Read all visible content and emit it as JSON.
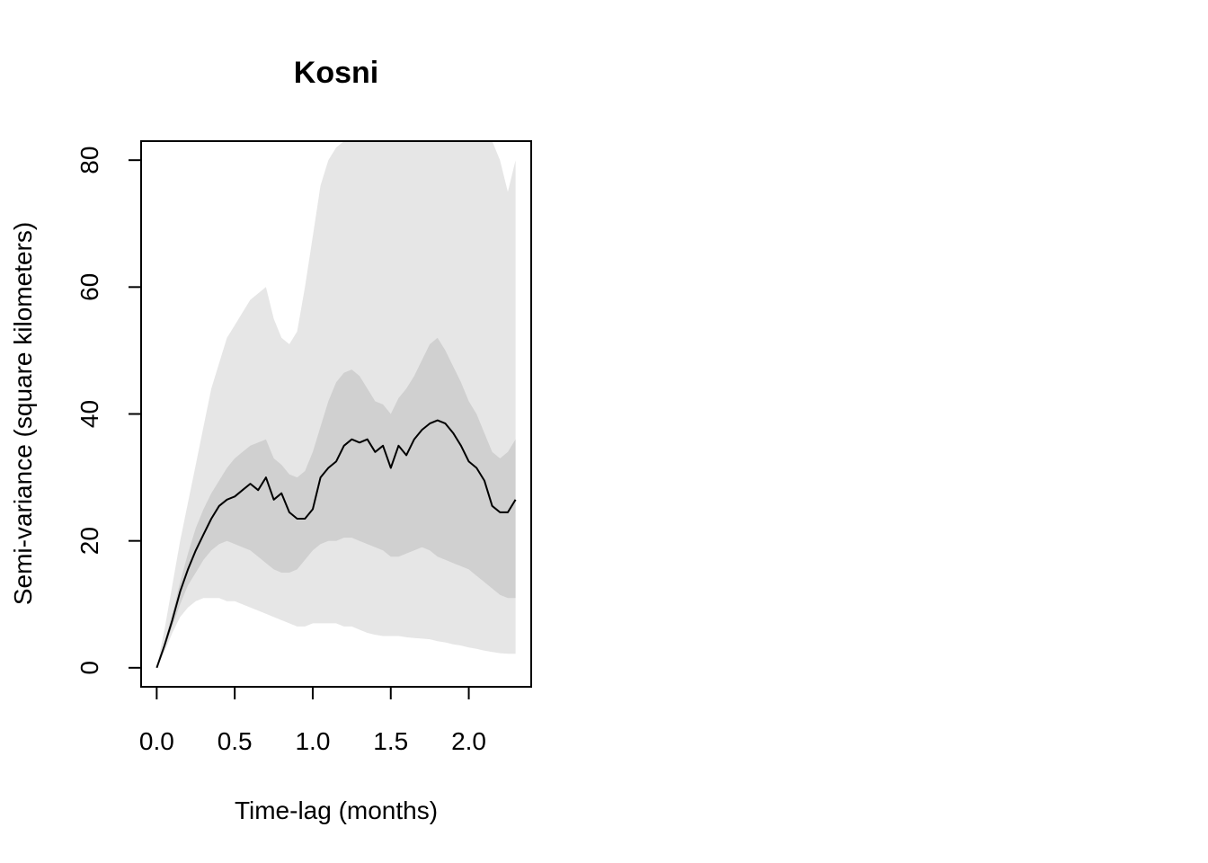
{
  "chart_data": {
    "type": "line",
    "title": "Kosni",
    "xlabel": "Time-lag (months)",
    "ylabel": "Semi-variance (square kilometers)",
    "xlim": [
      -0.1,
      2.4
    ],
    "ylim": [
      -3,
      83
    ],
    "xticks": [
      "0.0",
      "0.5",
      "1.0",
      "1.5",
      "2.0"
    ],
    "yticks": [
      "0",
      "20",
      "40",
      "60",
      "80"
    ],
    "grid": false,
    "colors": {
      "outer_band": "#e6e6e6",
      "inner_band": "#d0d0d0",
      "line": "#000000"
    },
    "x": [
      0.0,
      0.05,
      0.1,
      0.15,
      0.2,
      0.25,
      0.3,
      0.35,
      0.4,
      0.45,
      0.5,
      0.55,
      0.6,
      0.65,
      0.7,
      0.75,
      0.8,
      0.85,
      0.9,
      0.95,
      1.0,
      1.05,
      1.1,
      1.15,
      1.2,
      1.25,
      1.3,
      1.35,
      1.4,
      1.45,
      1.5,
      1.55,
      1.6,
      1.65,
      1.7,
      1.75,
      1.8,
      1.85,
      1.9,
      1.95,
      2.0,
      2.05,
      2.1,
      2.15,
      2.2,
      2.25,
      2.3
    ],
    "series": [
      {
        "values": [
          0,
          3.5,
          7.5,
          12,
          15.5,
          18.5,
          21,
          23.5,
          25.5,
          26.5,
          27,
          28,
          29,
          28,
          30,
          26.5,
          27.5,
          24.5,
          23.5,
          23.5,
          25,
          30,
          31.5,
          32.5,
          35,
          36,
          35.5,
          36,
          34,
          35,
          31.5,
          35,
          33.5,
          36,
          37.5,
          38.5,
          39,
          38.5,
          37,
          35,
          32.5,
          31.5,
          29.5,
          25.5,
          24.5,
          24.5,
          26.5
        ]
      }
    ],
    "bands": {
      "outer_upper": [
        0,
        6,
        13,
        20,
        26,
        32,
        38,
        44,
        48,
        52,
        54,
        56,
        58,
        59,
        60,
        55,
        52,
        51,
        53,
        60,
        68,
        76,
        80,
        82,
        84,
        87,
        90,
        90,
        90,
        90,
        90,
        90,
        90,
        90,
        90,
        90,
        90,
        90,
        90,
        90,
        90,
        90,
        90,
        90,
        80,
        75,
        80
      ],
      "inner_upper": [
        0,
        4,
        8.5,
        13.5,
        18,
        22,
        25,
        27.5,
        29.5,
        31.5,
        33,
        34,
        35,
        35.5,
        36,
        33,
        32,
        30.5,
        30,
        31,
        34,
        38,
        42,
        45,
        46.5,
        47,
        46,
        44,
        42,
        41.5,
        40,
        42.5,
        44,
        46,
        48.5,
        51,
        52,
        50,
        47.5,
        45,
        42,
        40,
        37,
        34,
        33,
        34,
        36
      ],
      "inner_lower": [
        0,
        3,
        6.5,
        10,
        13,
        15,
        17,
        18.5,
        19.5,
        20,
        19.5,
        19,
        18.5,
        17.5,
        16.5,
        15.5,
        15,
        15,
        15.5,
        17,
        18.5,
        19.5,
        20,
        20,
        20.5,
        20.5,
        20,
        19.5,
        19,
        18.5,
        17.5,
        17.5,
        18,
        18.5,
        19,
        18.5,
        17.5,
        17,
        16.5,
        16,
        15.5,
        14.5,
        13.5,
        12.5,
        11.5,
        11,
        11
      ],
      "outer_lower": [
        0,
        2.5,
        5.5,
        8,
        9.5,
        10.5,
        11,
        11,
        11,
        10.5,
        10.5,
        10,
        9.5,
        9,
        8.5,
        8,
        7.5,
        7,
        6.5,
        6.5,
        7,
        7,
        7,
        7,
        6.5,
        6.5,
        6,
        5.5,
        5.2,
        5,
        5,
        5,
        4.8,
        4.7,
        4.6,
        4.5,
        4.2,
        4,
        3.7,
        3.5,
        3.2,
        3,
        2.7,
        2.5,
        2.3,
        2.2,
        2.2
      ]
    }
  }
}
